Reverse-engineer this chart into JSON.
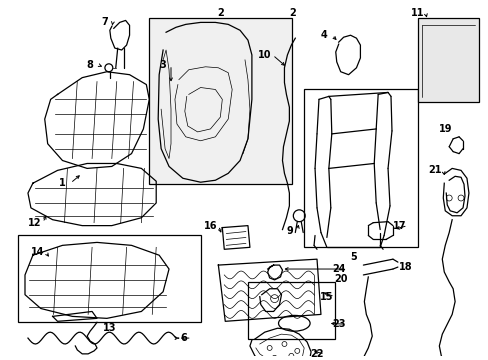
{
  "background_color": "#ffffff",
  "line_color": "#000000",
  "fig_width": 4.89,
  "fig_height": 3.6,
  "dpi": 100,
  "font_size": 7.0,
  "line_width": 0.9,
  "thin_lw": 0.5
}
